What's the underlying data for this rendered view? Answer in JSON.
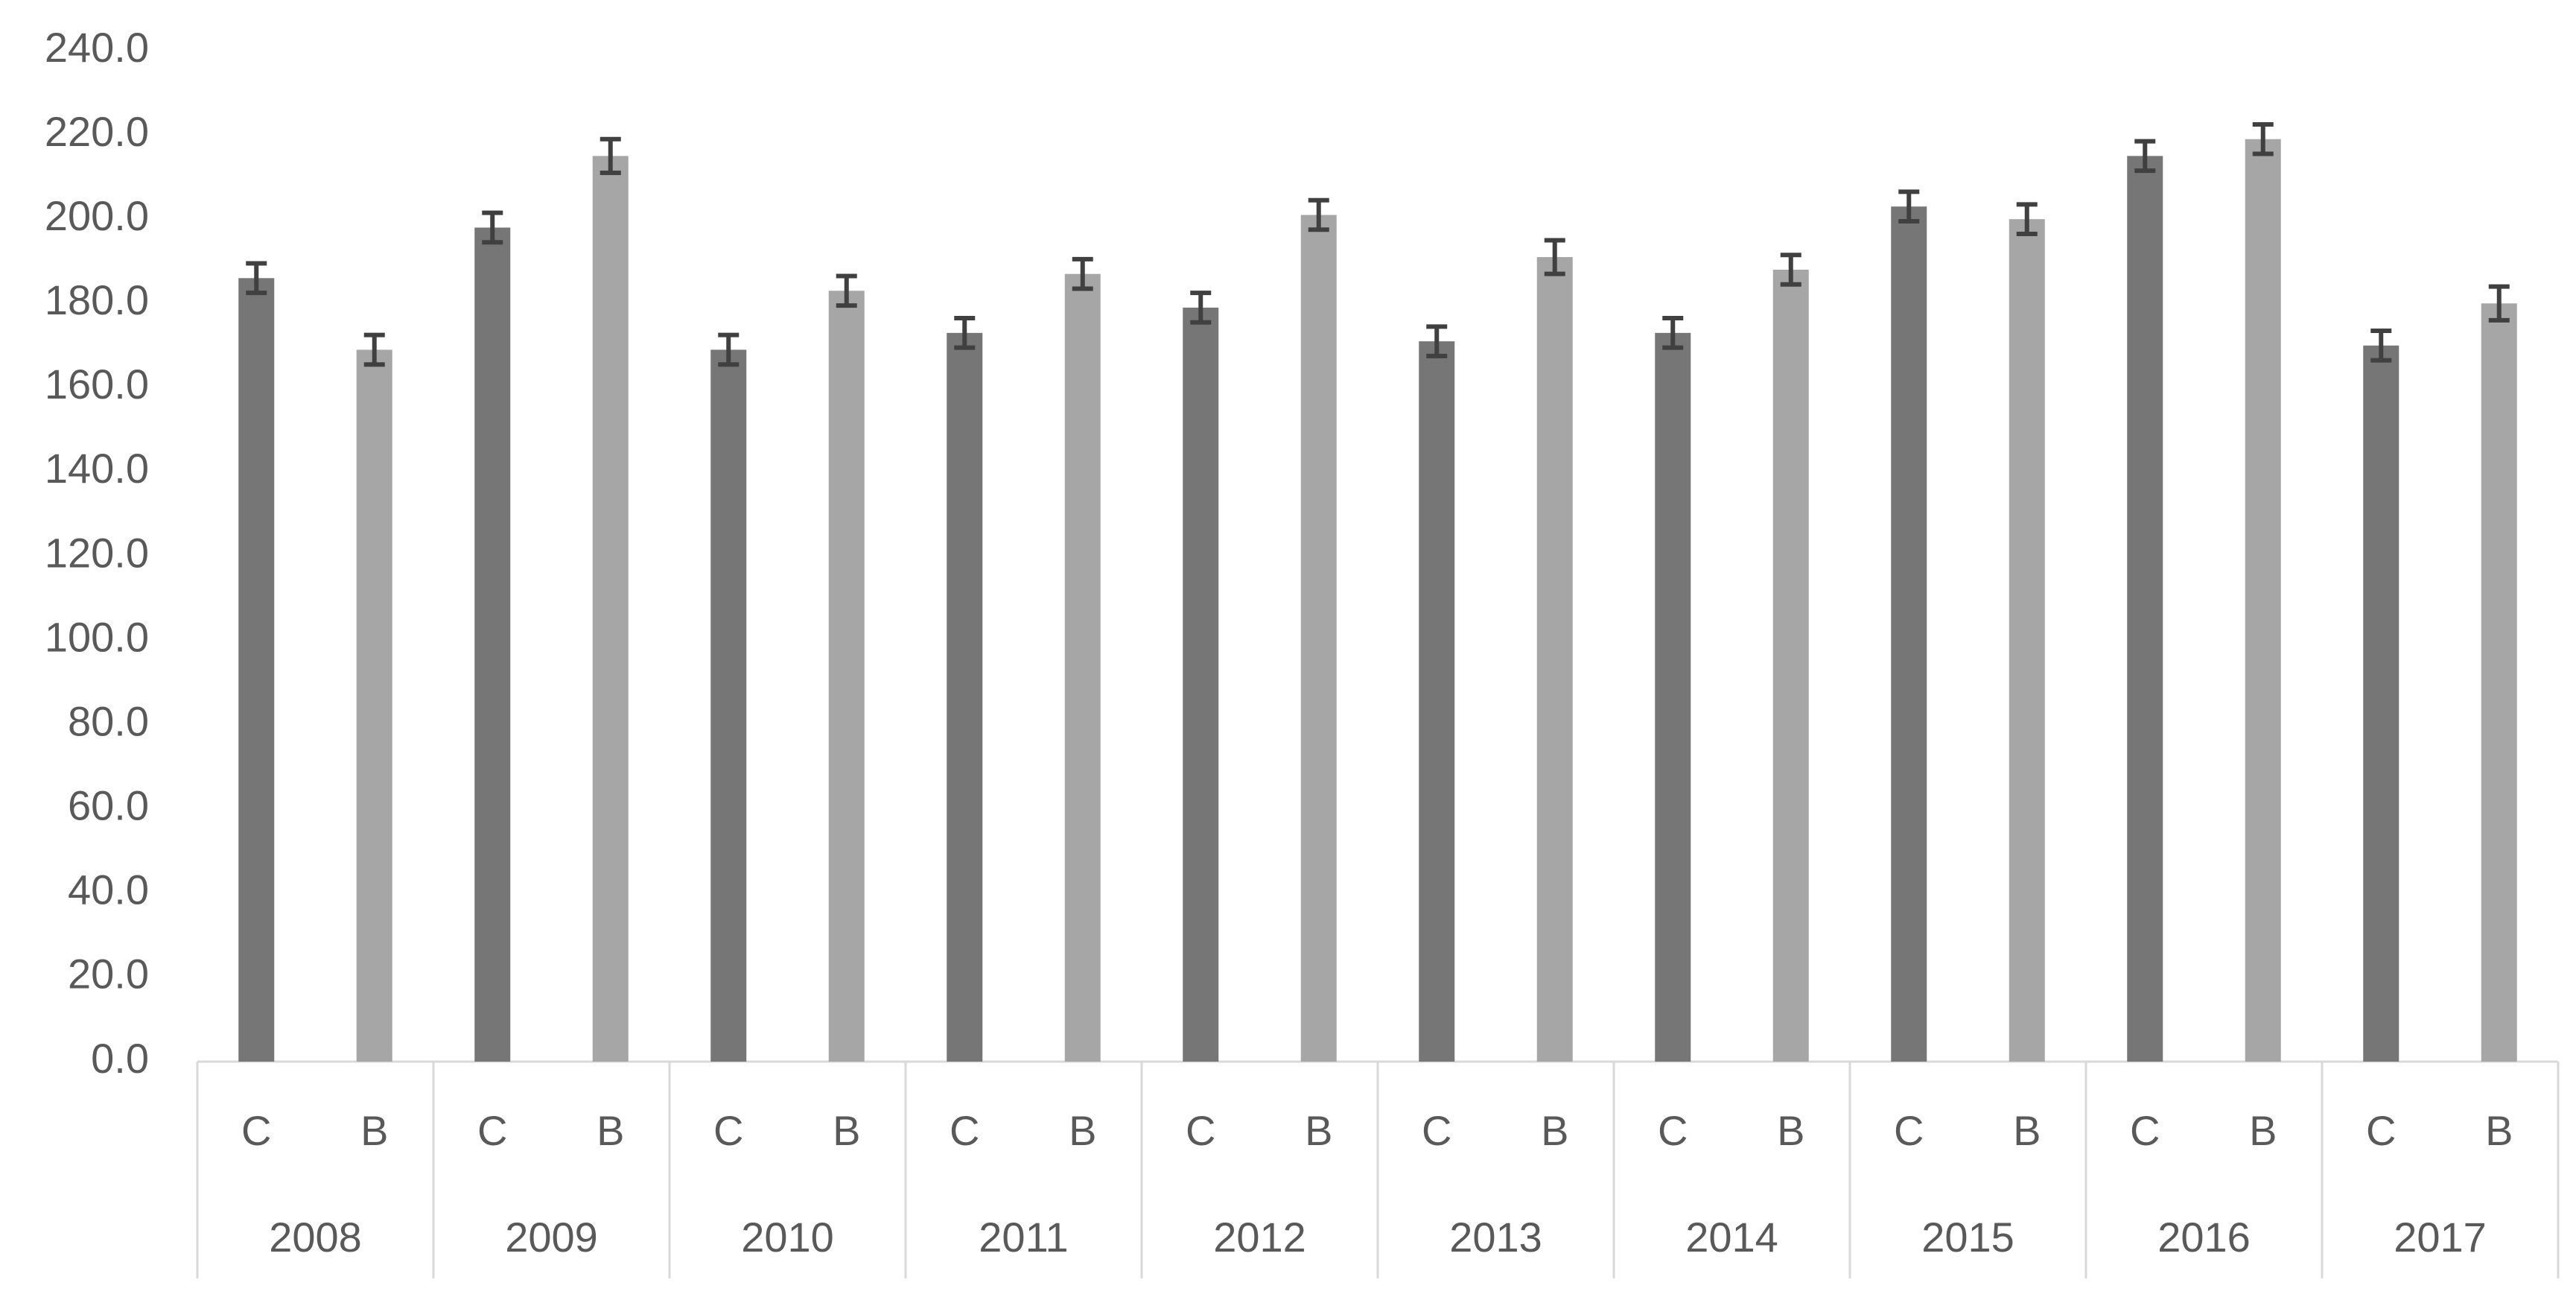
{
  "chart_data": {
    "type": "bar",
    "categories": [
      "2008",
      "2009",
      "2010",
      "2011",
      "2012",
      "2013",
      "2014",
      "2015",
      "2016",
      "2017"
    ],
    "series": [
      {
        "name": "C",
        "color": "#767676",
        "values": [
          186,
          198,
          169,
          173,
          179,
          171,
          173,
          203,
          215,
          170
        ],
        "errors": [
          3.5,
          3.5,
          3.5,
          3.5,
          3.5,
          3.5,
          3.5,
          3.5,
          3.5,
          3.5
        ]
      },
      {
        "name": "B",
        "color": "#a6a6a6",
        "values": [
          169,
          215,
          183,
          187,
          201,
          191,
          188,
          200,
          219,
          180
        ],
        "errors": [
          3.5,
          4,
          3.5,
          3.5,
          3.5,
          4,
          3.5,
          3.5,
          3.5,
          4
        ]
      }
    ],
    "ylim": [
      0,
      240
    ],
    "yticks": [
      {
        "value": 0,
        "label": "0.0"
      },
      {
        "value": 20,
        "label": "20.0"
      },
      {
        "value": 40,
        "label": "40.0"
      },
      {
        "value": 60,
        "label": "60.0"
      },
      {
        "value": 80,
        "label": "80.0"
      },
      {
        "value": 100,
        "label": "100.0"
      },
      {
        "value": 120,
        "label": "120.0"
      },
      {
        "value": 140,
        "label": "140.0"
      },
      {
        "value": 160,
        "label": "160.0"
      },
      {
        "value": 180,
        "label": "180.0"
      },
      {
        "value": 200,
        "label": "200.0"
      },
      {
        "value": 220,
        "label": "220.0"
      },
      {
        "value": 240,
        "label": "240.0"
      }
    ],
    "grid": false
  }
}
